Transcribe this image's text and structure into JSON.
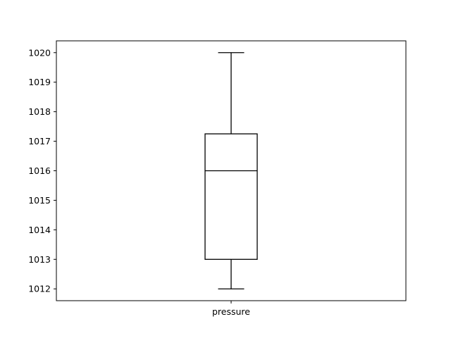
{
  "chart_data": {
    "type": "box",
    "title": "",
    "xlabel": "",
    "ylabel": "",
    "categories": [
      "pressure"
    ],
    "boxes": [
      {
        "name": "pressure",
        "whisker_low": 1012,
        "q1": 1013,
        "median": 1016,
        "q3": 1017.25,
        "whisker_high": 1020
      }
    ],
    "ylim": [
      1011.6,
      1020.4
    ],
    "yticks": [
      1012,
      1013,
      1014,
      1015,
      1016,
      1017,
      1018,
      1019,
      1020
    ],
    "grid": false,
    "line_color": "#000000"
  }
}
